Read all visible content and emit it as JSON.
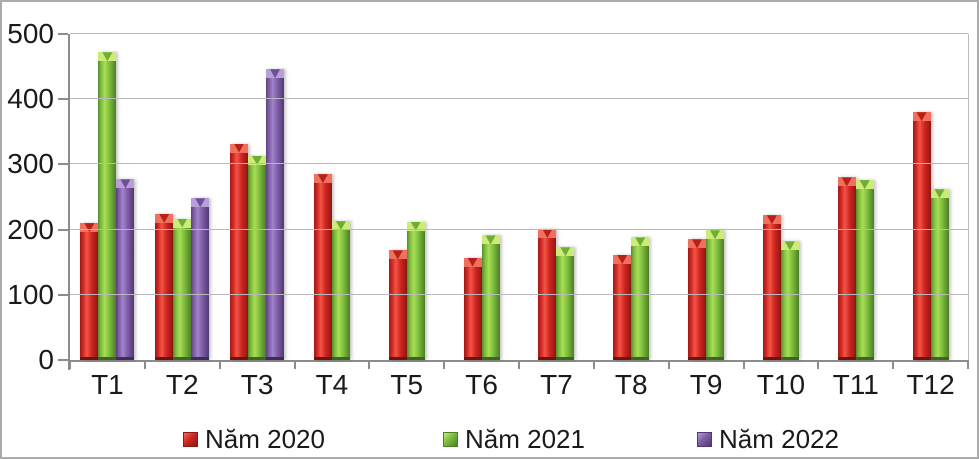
{
  "chart_data": {
    "type": "bar",
    "title": "",
    "xlabel": "",
    "ylabel": "",
    "categories": [
      "T1",
      "T2",
      "T3",
      "T4",
      "T5",
      "T6",
      "T7",
      "T8",
      "T9",
      "T10",
      "T11",
      "T12"
    ],
    "series": [
      {
        "name": "Năm 2020",
        "color": "#cf2520",
        "values": [
          210,
          224,
          332,
          285,
          168,
          157,
          201,
          161,
          185,
          222,
          280,
          380
        ],
        "colors": {
          "edge": "#9b1b17",
          "mid": "#cf2520",
          "light": "#f25545",
          "darkr": "#8e1813",
          "cap": "#f0705e",
          "notch": "#b92019",
          "base": "#701210"
        }
      },
      {
        "name": "Năm 2021",
        "color": "#7bbc3d",
        "values": [
          472,
          217,
          313,
          213,
          212,
          191,
          173,
          188,
          199,
          182,
          276,
          262
        ],
        "colors": {
          "edge": "#55892a",
          "mid": "#7bbc3d",
          "light": "#aadd55",
          "darkr": "#4e7d26",
          "cap": "#cdeb78",
          "notch": "#6fae35",
          "base": "#3f661e"
        }
      },
      {
        "name": "Năm 2022",
        "color": "#7e5da8",
        "values": [
          277,
          248,
          446,
          null,
          null,
          null,
          null,
          null,
          null,
          null,
          null,
          null
        ],
        "colors": {
          "edge": "#5b3f7e",
          "mid": "#7e5da8",
          "light": "#a183c8",
          "darkr": "#523870",
          "cap": "#b89fd6",
          "notch": "#6f4f9b",
          "base": "#402a59"
        }
      }
    ],
    "ylim": [
      0,
      500
    ],
    "yticks": [
      0,
      100,
      200,
      300,
      400,
      500
    ],
    "ytick_labels": [
      "0",
      "100",
      "200",
      "300",
      "400",
      "500"
    ],
    "grid": true,
    "legend_position": "bottom"
  }
}
